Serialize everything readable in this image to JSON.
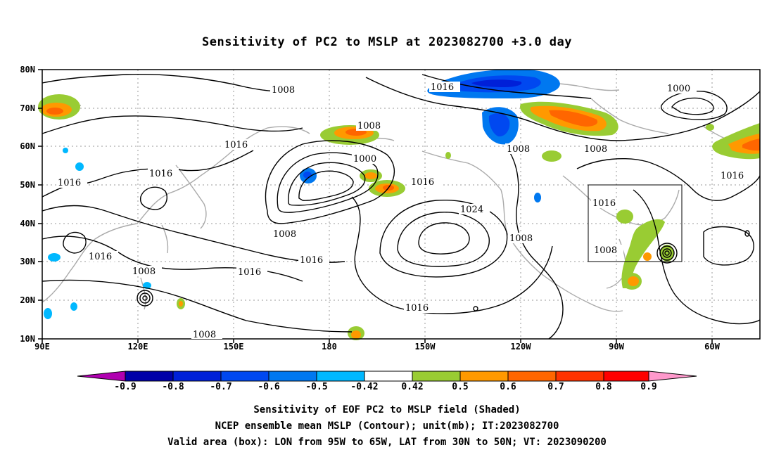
{
  "title": "Sensitivity of PC2 to MSLP at 2023082700 +3.0 day",
  "lat_labels": [
    "80N",
    "70N",
    "60N",
    "50N",
    "40N",
    "30N",
    "20N",
    "10N"
  ],
  "lon_labels": [
    "90E",
    "120E",
    "150E",
    "180",
    "150W",
    "120W",
    "90W",
    "60W"
  ],
  "contour_labels": [
    "1008",
    "1016",
    "1000",
    "1024"
  ],
  "colorbar": {
    "labels": [
      "-0.9",
      "-0.8",
      "-0.7",
      "-0.6",
      "-0.5",
      "-0.42",
      "0.42",
      "0.5",
      "0.6",
      "0.7",
      "0.8",
      "0.9"
    ],
    "colors": [
      "#b000b0",
      "#0000a8",
      "#0020d8",
      "#0048f0",
      "#0078f0",
      "#00b8ff",
      "#ffffff",
      "#99cc33",
      "#ff9900",
      "#ff6600",
      "#ff3300",
      "#ff0000",
      "#ff99cc"
    ]
  },
  "captions": [
    "Sensitivity of EOF PC2 to MSLP field (Shaded)",
    "NCEP ensemble mean MSLP (Contour); unit(mb); IT:2023082700",
    "Valid area (box): LON from 95W to 65W, LAT from 30N to 50N; VT: 2023090200"
  ]
}
